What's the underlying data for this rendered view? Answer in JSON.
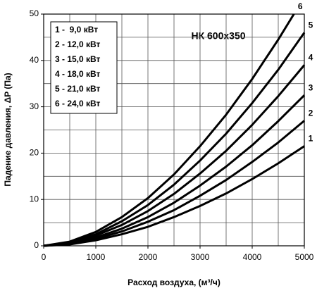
{
  "chart_data": {
    "type": "line",
    "title": "НК 600х350",
    "x_label": "Расход воздуха, (м³/ч)",
    "y_label": "Падение давления, ΔP (Па)",
    "xlim": [
      0,
      5000
    ],
    "xticks": [
      0,
      1000,
      2000,
      3000,
      4000,
      5000
    ],
    "ylim": [
      0,
      50
    ],
    "yticks": [
      0,
      10,
      20,
      30,
      40,
      50
    ],
    "xgrid": [
      500,
      1000,
      1500,
      2000,
      2500,
      3000,
      3500,
      4000,
      4500
    ],
    "ygrid": [
      5,
      10,
      15,
      20,
      25,
      30,
      35,
      40,
      45
    ],
    "grid": true,
    "legend": "upper left",
    "series": [
      {
        "name": "1 -  9,0 кВт",
        "label": "1",
        "color": "#000000",
        "x": [
          0,
          500,
          1000,
          1500,
          2000,
          2500,
          3000,
          3500,
          4000,
          4500,
          5000
        ],
        "values": [
          0,
          0.3,
          1.2,
          2.5,
          4.1,
          6.2,
          8.6,
          11.3,
          14.4,
          17.8,
          21.5
        ]
      },
      {
        "name": "2 - 12,0 кВт",
        "label": "2",
        "color": "#000000",
        "x": [
          0,
          500,
          1000,
          1500,
          2000,
          2500,
          3000,
          3500,
          4000,
          4500,
          5000
        ],
        "values": [
          0,
          0.4,
          1.5,
          3.1,
          5.2,
          7.7,
          10.8,
          14.2,
          18.1,
          22.3,
          27
        ]
      },
      {
        "name": "3 - 15,0 кВт",
        "label": "3",
        "color": "#000000",
        "x": [
          0,
          500,
          1000,
          1500,
          2000,
          2500,
          3000,
          3500,
          4000,
          4500,
          5000
        ],
        "values": [
          0,
          0.5,
          1.8,
          3.7,
          6.2,
          9.3,
          13,
          17.1,
          21.7,
          26.9,
          32.5
        ]
      },
      {
        "name": "4 - 18,0 кВт",
        "label": "4",
        "color": "#000000",
        "x": [
          0,
          500,
          1000,
          1500,
          2000,
          2500,
          3000,
          3500,
          4000,
          4500,
          5000
        ],
        "values": [
          0,
          0.6,
          2.2,
          4.5,
          7.5,
          11.2,
          15.6,
          20.5,
          26.1,
          32.3,
          39
        ]
      },
      {
        "name": "5 - 21,0 кВт",
        "label": "5",
        "color": "#000000",
        "x": [
          0,
          500,
          1000,
          1500,
          2000,
          2500,
          3000,
          3500,
          4000,
          4500,
          5000
        ],
        "values": [
          0,
          0.7,
          2.5,
          5.3,
          8.8,
          13.2,
          18.4,
          24.2,
          30.8,
          38,
          46
        ]
      },
      {
        "name": "6 - 24,0 кВт",
        "label": "6",
        "color": "#000000",
        "x": [
          0,
          500,
          1000,
          1500,
          2000,
          2500,
          3000,
          3500,
          4000,
          4500,
          4800
        ],
        "values": [
          0,
          0.9,
          3,
          6.2,
          10.3,
          15.4,
          21.5,
          28.3,
          36,
          44.5,
          50
        ]
      }
    ]
  }
}
